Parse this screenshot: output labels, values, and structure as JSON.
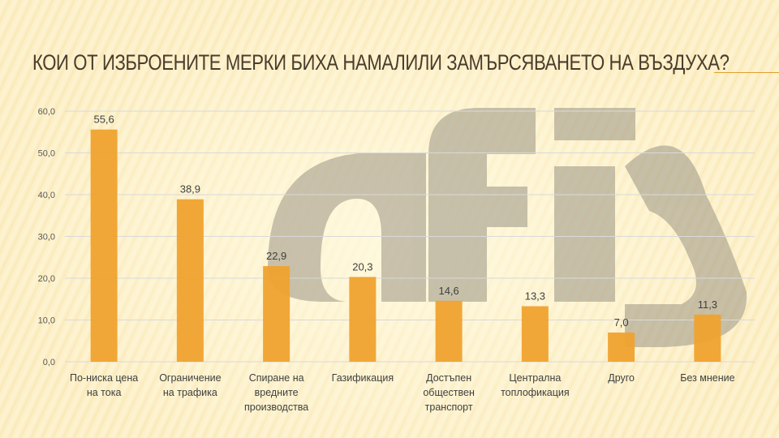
{
  "title": "КОИ ОТ ИЗБРОЕНИТЕ МЕРКИ БИХА НАМАЛИЛИ ЗАМЪРСЯВАНЕТО НА ВЪЗДУХА?",
  "watermark_logo": "afis",
  "colors": {
    "bar": "#f0a22e",
    "title": "#4a3c2a",
    "grid": "#d9d9d9"
  },
  "chart_data": {
    "type": "bar",
    "title": "",
    "xlabel": "",
    "ylabel": "",
    "ylim": [
      0,
      60
    ],
    "yticks": [
      "0,0",
      "10,0",
      "20,0",
      "30,0",
      "40,0",
      "50,0",
      "60,0"
    ],
    "grid": true,
    "categories": [
      [
        "По-ниска цена",
        "на тока"
      ],
      [
        "Ограничение",
        "на трафика"
      ],
      [
        "Спиране на",
        "вредните",
        "производства"
      ],
      [
        "Газификация"
      ],
      [
        "Достъпен",
        "обществен",
        "транспорт"
      ],
      [
        "Централна",
        "топлофикация"
      ],
      [
        "Друго"
      ],
      [
        "Без мнение"
      ]
    ],
    "values": [
      55.6,
      38.9,
      22.9,
      20.3,
      14.6,
      13.3,
      7.0,
      11.3
    ],
    "data_labels": [
      "55,6",
      "38,9",
      "22,9",
      "20,3",
      "14,6",
      "13,3",
      "7,0",
      "11,3"
    ]
  }
}
